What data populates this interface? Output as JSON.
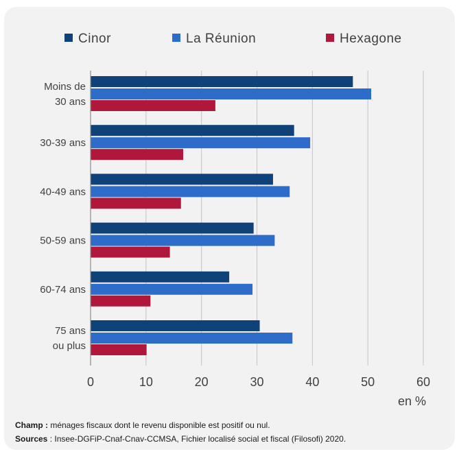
{
  "chart_data": {
    "type": "bar",
    "orientation": "horizontal",
    "categories": [
      [
        "Moins de",
        "30 ans"
      ],
      [
        "30-39 ans"
      ],
      [
        "40-49 ans"
      ],
      [
        "50-59 ans"
      ],
      [
        "60-74 ans"
      ],
      [
        "75 ans",
        "ou plus"
      ]
    ],
    "series": [
      {
        "name": "Cinor",
        "color": "#10427a",
        "values": [
          47.3,
          36.7,
          32.9,
          29.4,
          25.0,
          30.5
        ]
      },
      {
        "name": "La Réunion",
        "color": "#2e6cc9",
        "values": [
          50.6,
          39.6,
          35.9,
          33.2,
          29.2,
          36.4
        ]
      },
      {
        "name": "Hexagone",
        "color": "#b0173a",
        "values": [
          22.5,
          16.7,
          16.3,
          14.3,
          10.8,
          10.1
        ]
      }
    ],
    "xlim": [
      0,
      60
    ],
    "xticks": [
      "0",
      "10",
      "20",
      "30",
      "40",
      "50",
      "60"
    ],
    "xunit": "en %",
    "legend_position": "top",
    "grid": "vertical"
  },
  "footnotes": {
    "champ_label": "Champ :",
    "champ_text": " ménages fiscaux dont le revenu disponible est positif ou nul.",
    "sources_label": "Sources",
    "sources_text": " : Insee-DGFiP-Cnaf-Cnav-CCMSA, Fichier localisé social et fiscal (Filosofi) 2020."
  }
}
